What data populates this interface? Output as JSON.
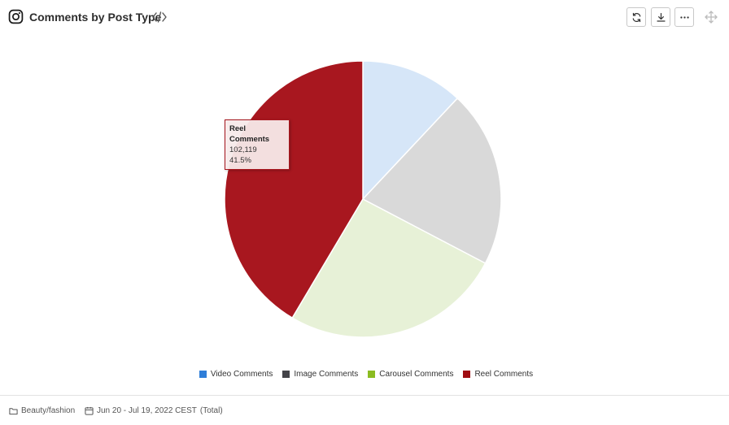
{
  "header": {
    "title": "Comments by Post Type",
    "app_icon": "instagram-icon",
    "embed_icon": "code-embed-icon",
    "actions": [
      {
        "name": "refresh",
        "icon": "refresh-icon"
      },
      {
        "name": "download",
        "icon": "download-icon"
      },
      {
        "name": "more",
        "icon": "more-horizontal-icon"
      }
    ],
    "move_icon": "move-arrows-icon"
  },
  "chart_data": {
    "type": "pie",
    "title": "Comments by Post Type",
    "series": [
      {
        "name": "Video Comments",
        "value": 29500,
        "percent": 12.0,
        "color": "#d6e6f8",
        "legend_color": "#2f7ed8"
      },
      {
        "name": "Image Comments",
        "value": 51000,
        "percent": 20.7,
        "color": "#d9d9d9",
        "legend_color": "#434348"
      },
      {
        "name": "Carousel Comments",
        "value": 63600,
        "percent": 25.8,
        "color": "#e7f1d7",
        "legend_color": "#8bbc21"
      },
      {
        "name": "Reel Comments",
        "value": 102119,
        "percent": 41.5,
        "color": "#a8171f",
        "legend_color": "#a00d12"
      }
    ],
    "legend_position": "bottom",
    "tooltip": {
      "series": "Reel Comments",
      "value_text": "102,119",
      "percent_text": "41.5%"
    }
  },
  "footer": {
    "folder_icon": "folder-icon",
    "folder": "Beauty/fashion",
    "calendar_icon": "calendar-icon",
    "date_range": "Jun 20 - Jul 19, 2022 CEST",
    "scope": "(Total)"
  }
}
